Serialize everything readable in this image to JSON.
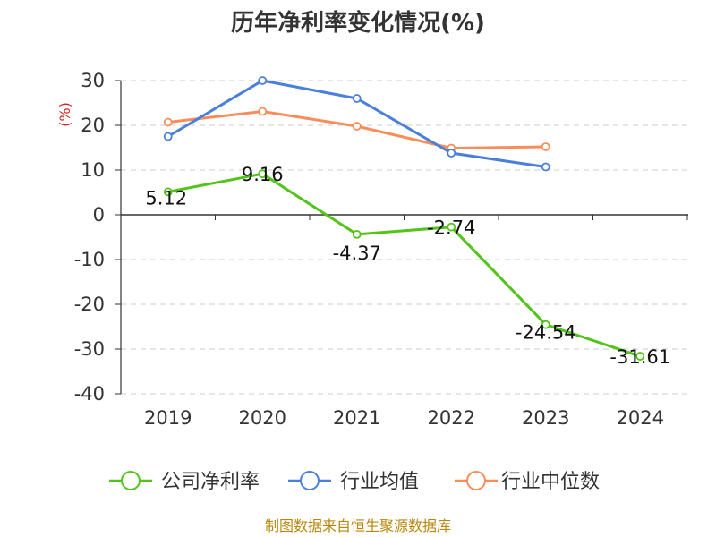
{
  "chart_data": {
    "type": "line",
    "title": "历年净利率变化情况(%)",
    "xlabel": "",
    "ylabel": "(%)",
    "categories": [
      "2019",
      "2020",
      "2021",
      "2022",
      "2023",
      "2024"
    ],
    "ylim": [
      -40,
      30
    ],
    "yticks": [
      30,
      20,
      10,
      0,
      -10,
      -20,
      -30,
      -40
    ],
    "grid": true,
    "legend_position": "bottom",
    "series": [
      {
        "name": "公司净利率",
        "color": "#52c41a",
        "values": [
          5.12,
          9.16,
          -4.37,
          -2.74,
          -24.54,
          -31.61
        ],
        "labels": [
          "5.12",
          "9.16",
          "-4.37",
          "-2.74",
          "-24.54",
          "-31.61"
        ]
      },
      {
        "name": "行业均值",
        "color": "#4a7fdc",
        "values": [
          17.5,
          30.0,
          26.0,
          13.8,
          10.7,
          null
        ]
      },
      {
        "name": "行业中位数",
        "color": "#f98d5a",
        "values": [
          20.7,
          23.1,
          19.8,
          14.9,
          15.2,
          null
        ]
      }
    ]
  },
  "source": "制图数据来自恒生聚源数据库"
}
